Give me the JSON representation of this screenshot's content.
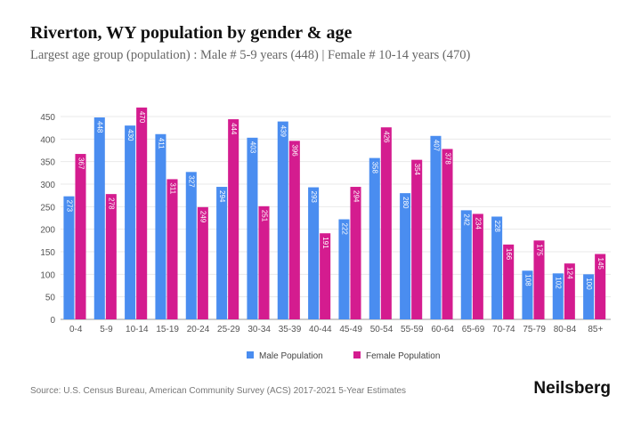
{
  "header": {
    "title": "Riverton, WY population by gender & age",
    "subtitle": "Largest age group (population) : Male # 5-9 years (448) | Female # 10-14 years (470)"
  },
  "footer": {
    "source": "Source: U.S. Census Bureau, American Community Survey (ACS) 2017-2021 5-Year Estimates",
    "brand": "Neilsberg"
  },
  "chart_data": {
    "type": "bar",
    "categories": [
      "0-4",
      "5-9",
      "10-14",
      "15-19",
      "20-24",
      "25-29",
      "30-34",
      "35-39",
      "40-44",
      "45-49",
      "50-54",
      "55-59",
      "60-64",
      "65-69",
      "70-74",
      "75-79",
      "80-84",
      "85+"
    ],
    "series": [
      {
        "name": "Male Population",
        "color": "#4a8df0",
        "values": [
          273,
          448,
          430,
          411,
          327,
          294,
          403,
          439,
          293,
          222,
          358,
          280,
          407,
          242,
          228,
          108,
          102,
          100
        ]
      },
      {
        "name": "Female Population",
        "color": "#d41c8f",
        "values": [
          367,
          278,
          470,
          311,
          249,
          444,
          251,
          396,
          191,
          294,
          426,
          354,
          378,
          234,
          166,
          175,
          124,
          145
        ]
      }
    ],
    "yticks": [
      0,
      50,
      100,
      150,
      200,
      250,
      300,
      350,
      400,
      450
    ],
    "ylim": [
      0,
      470
    ],
    "grid": true,
    "legend": "bottom"
  }
}
